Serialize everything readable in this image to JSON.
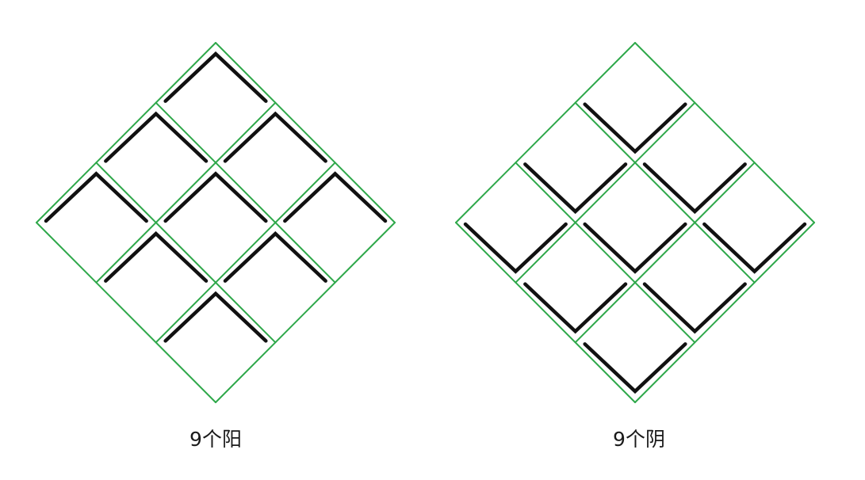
{
  "colors": {
    "grid": "#2ea84a",
    "stroke": "#111111",
    "background": "#ffffff"
  },
  "diagrams": [
    {
      "id": "yang",
      "caption": "9个阳",
      "mark": "peak",
      "cells": 9
    },
    {
      "id": "yin",
      "caption": "9个阴",
      "mark": "valley",
      "cells": 9
    }
  ]
}
